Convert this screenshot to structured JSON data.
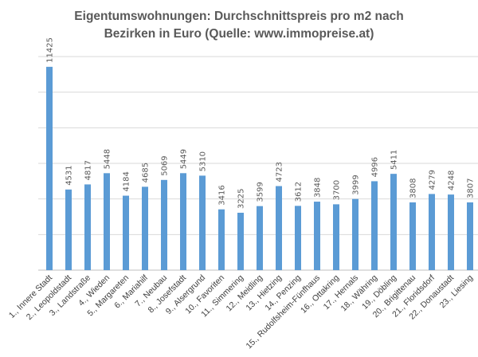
{
  "chart_data": {
    "type": "bar",
    "title": "Eigentumswohnungen: Durchschnittspreis pro m2 nach Bezirken in Euro (Quelle: www.immopreise.at)",
    "title_lines": [
      "Eigentumswohnungen: Durchschnittspreis pro m2 nach",
      "Bezirken in Euro (Quelle: www.immopreise.at)"
    ],
    "xlabel": "",
    "ylabel": "",
    "ylim": [
      0,
      12000
    ],
    "grid_step": 2000,
    "grid": true,
    "y_tick_labels_shown": false,
    "data_labels": true,
    "legend": "none",
    "bar_color": "#5b9bd5",
    "categories": [
      "1., Innere Stadt",
      "2., Leopoldstadt",
      "3., Landstraße",
      "4., Wieden",
      "5., Margareten",
      "6., Mariahilf",
      "7., Neubau",
      "8., Josefstadt",
      "9., Alsergrund",
      "10., Favoriten",
      "11., Simmering",
      "12., Meidling",
      "13., Hietzing",
      "14., Penzing",
      "15., Rudolfsheim-Fünfhaus",
      "16., Ottakring",
      "17., Hernals",
      "18., Währing",
      "19., Döbling",
      "20., Brigittenau",
      "21., Floridsdorf",
      "22., Donaustadt",
      "23., Liesing"
    ],
    "values": [
      11425,
      4531,
      4817,
      5448,
      4184,
      4685,
      5069,
      5449,
      5310,
      3416,
      3225,
      3599,
      4723,
      3612,
      3848,
      3700,
      3999,
      4996,
      5411,
      3808,
      4279,
      4248,
      3807
    ]
  }
}
